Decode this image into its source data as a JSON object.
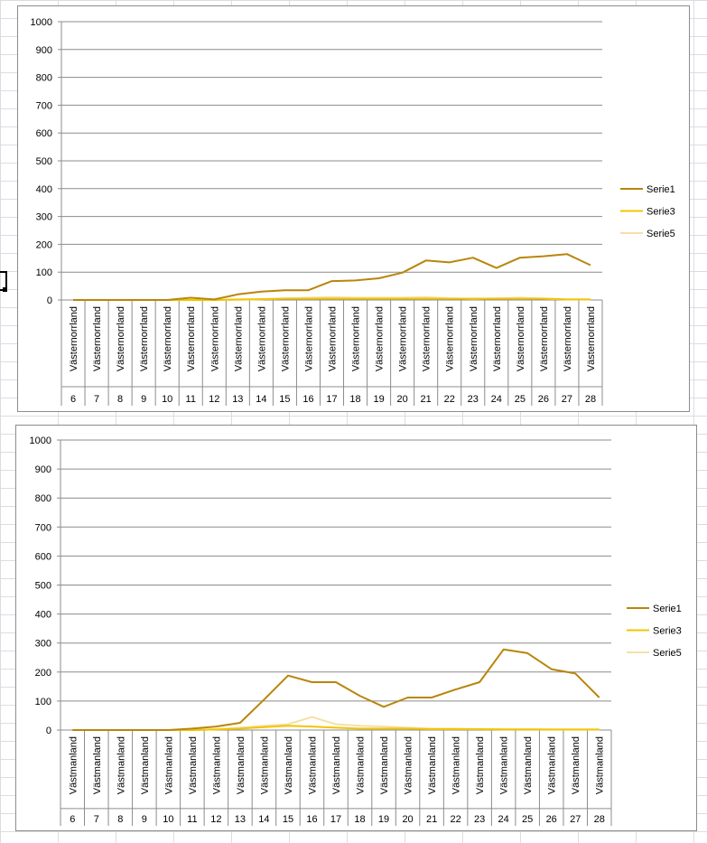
{
  "chart_data": [
    {
      "type": "line",
      "title": "",
      "region": "Västernorrland",
      "categories": [
        "6",
        "7",
        "8",
        "9",
        "10",
        "11",
        "12",
        "13",
        "14",
        "15",
        "16",
        "17",
        "18",
        "19",
        "20",
        "21",
        "22",
        "23",
        "24",
        "25",
        "26",
        "27",
        "28"
      ],
      "ylim": [
        0,
        1000
      ],
      "yticks": [
        0,
        100,
        200,
        300,
        400,
        500,
        600,
        700,
        800,
        900,
        1000
      ],
      "grid": true,
      "legend": "right",
      "series": [
        {
          "name": "Serie1",
          "color": "#b8860b",
          "values": [
            0,
            0,
            0,
            0,
            0,
            8,
            2,
            20,
            30,
            35,
            35,
            68,
            70,
            78,
            98,
            142,
            135,
            152,
            115,
            152,
            157,
            165,
            125
          ]
        },
        {
          "name": "Serie3",
          "color": "#f2c500",
          "values": [
            0,
            0,
            0,
            0,
            0,
            0,
            0,
            2,
            3,
            5,
            5,
            5,
            5,
            5,
            5,
            5,
            5,
            5,
            5,
            5,
            5,
            2,
            2
          ]
        },
        {
          "name": "Serie5",
          "color": "#f7dfa5",
          "values": [
            0,
            0,
            0,
            0,
            0,
            0,
            0,
            0,
            3,
            6,
            8,
            10,
            8,
            8,
            8,
            10,
            6,
            4,
            6,
            8,
            5,
            2,
            2
          ]
        }
      ]
    },
    {
      "type": "line",
      "title": "",
      "region": "Västmanland",
      "categories": [
        "6",
        "7",
        "8",
        "9",
        "10",
        "11",
        "12",
        "13",
        "14",
        "15",
        "16",
        "17",
        "18",
        "19",
        "20",
        "21",
        "22",
        "23",
        "24",
        "25",
        "26",
        "27",
        "28"
      ],
      "ylim": [
        0,
        1000
      ],
      "yticks": [
        0,
        100,
        200,
        300,
        400,
        500,
        600,
        700,
        800,
        900,
        1000
      ],
      "grid": true,
      "legend": "right",
      "series": [
        {
          "name": "Serie1",
          "color": "#b8860b",
          "values": [
            0,
            0,
            0,
            0,
            0,
            5,
            12,
            25,
            105,
            188,
            165,
            165,
            118,
            80,
            112,
            112,
            140,
            165,
            278,
            265,
            210,
            195,
            112
          ]
        },
        {
          "name": "Serie3",
          "color": "#f2c500",
          "values": [
            0,
            0,
            0,
            0,
            0,
            0,
            2,
            5,
            10,
            15,
            12,
            8,
            5,
            5,
            5,
            3,
            3,
            3,
            2,
            2,
            2,
            2,
            2
          ]
        },
        {
          "name": "Serie5",
          "color": "#f7dfa5",
          "values": [
            0,
            0,
            0,
            0,
            0,
            0,
            3,
            8,
            15,
            20,
            45,
            20,
            15,
            12,
            8,
            5,
            5,
            3,
            3,
            3,
            2,
            2,
            2
          ]
        }
      ]
    }
  ]
}
